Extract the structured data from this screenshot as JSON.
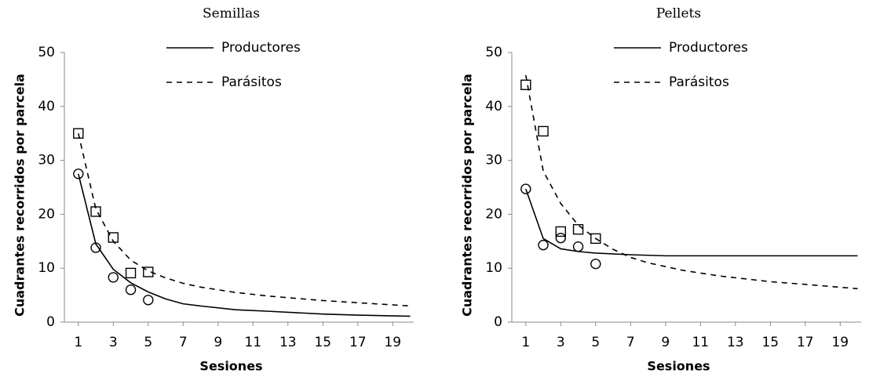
{
  "chart_data": [
    {
      "type": "scatter",
      "title": "Semillas",
      "x_label": "Sesiones",
      "y_label": "Cuadrantes recorridos por parcela",
      "xlim": [
        0.2,
        20.2
      ],
      "ylim": [
        0,
        50
      ],
      "xticks": [
        1,
        3,
        5,
        7,
        9,
        11,
        13,
        15,
        17,
        19
      ],
      "yticks": [
        0,
        10,
        20,
        30,
        40,
        50
      ],
      "color": "#000000",
      "series": [
        {
          "name": "Productores",
          "line_style": "solid",
          "marker": "circle",
          "x": [
            1,
            2,
            3,
            4,
            5,
            6,
            7,
            8,
            10,
            12,
            15,
            17,
            20
          ],
          "values": [
            27.5,
            14.5,
            9.8,
            7.3,
            5.6,
            4.3,
            3.4,
            3.0,
            2.3,
            2.0,
            1.5,
            1.3,
            1.1
          ],
          "observed_x": [
            1,
            2,
            3,
            4,
            5
          ],
          "observed_values": [
            27.5,
            13.8,
            8.3,
            6,
            4.1
          ]
        },
        {
          "name": "Parásitos",
          "line_style": "dashed",
          "marker": "square",
          "x": [
            1,
            2,
            3,
            4,
            5,
            6,
            7,
            8,
            10,
            12,
            15,
            17,
            20
          ],
          "values": [
            35,
            21,
            15,
            11.5,
            9.5,
            8.2,
            7.2,
            6.5,
            5.5,
            4.8,
            4.0,
            3.6,
            3.0
          ],
          "observed_x": [
            1,
            2,
            3,
            4,
            5
          ],
          "observed_values": [
            35,
            20.5,
            15.7,
            9.1,
            9.3
          ]
        }
      ]
    },
    {
      "type": "scatter",
      "title": "Pellets",
      "x_label": "Sesiones",
      "y_label": "Cuadrantes recorridos por parcela",
      "xlim": [
        0.2,
        20.2
      ],
      "ylim": [
        0,
        50
      ],
      "xticks": [
        1,
        3,
        5,
        7,
        9,
        11,
        13,
        15,
        17,
        19
      ],
      "yticks": [
        0,
        10,
        20,
        30,
        40,
        50
      ],
      "color": "#000000",
      "series": [
        {
          "name": "Productores",
          "line_style": "solid",
          "marker": "circle",
          "x": [
            1,
            2,
            3,
            4,
            5,
            7,
            9,
            12,
            15,
            20
          ],
          "values": [
            24.7,
            15.5,
            13.6,
            13.1,
            12.8,
            12.5,
            12.3,
            12.3,
            12.3,
            12.3
          ],
          "observed_x": [
            1,
            2,
            3,
            4,
            5
          ],
          "observed_values": [
            24.7,
            14.3,
            15.6,
            14,
            10.8
          ]
        },
        {
          "name": "Parásitos",
          "line_style": "dashed",
          "marker": "square",
          "x": [
            1,
            2,
            3,
            4,
            5,
            6,
            7,
            8,
            10,
            12,
            15,
            17,
            20
          ],
          "values": [
            45.8,
            28,
            22,
            18,
            15.5,
            13.5,
            12,
            11,
            9.6,
            8.6,
            7.5,
            7.0,
            6.2
          ],
          "observed_x": [
            1,
            2,
            3,
            4,
            5
          ],
          "observed_values": [
            44,
            35.4,
            16.8,
            17.2,
            15.5
          ]
        }
      ]
    }
  ]
}
